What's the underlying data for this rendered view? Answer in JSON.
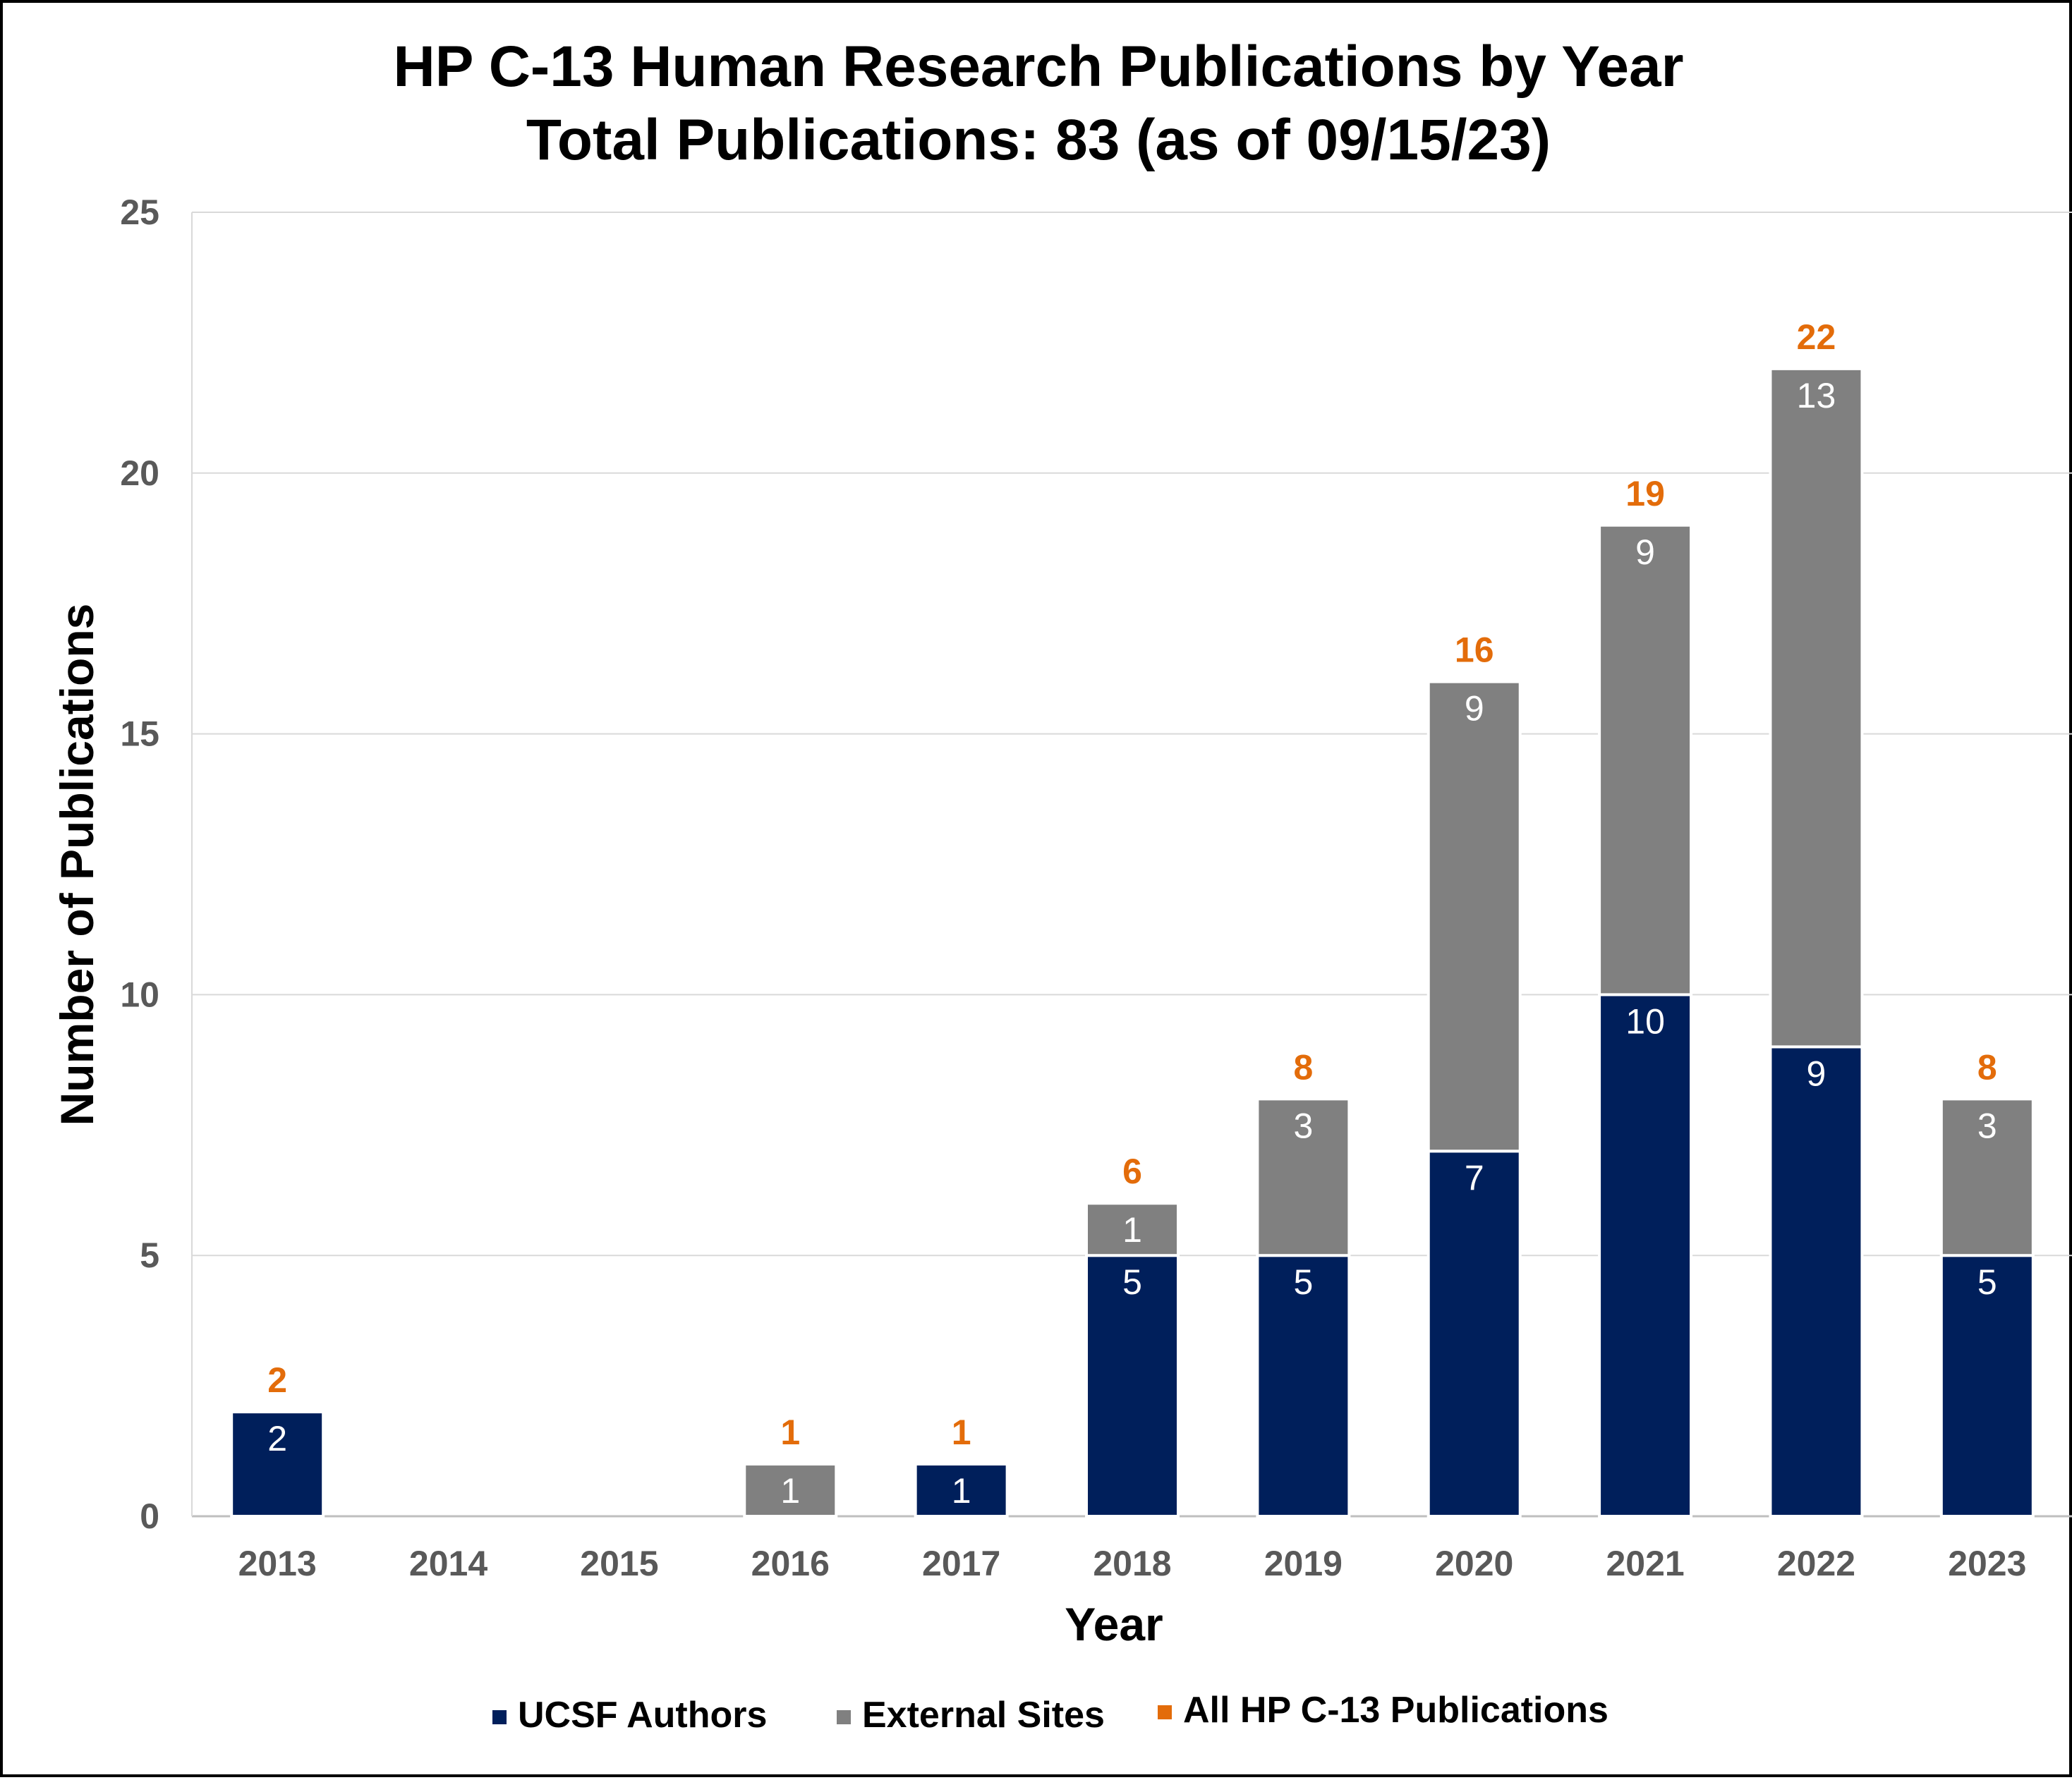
{
  "chart_data": {
    "type": "bar",
    "stacked": true,
    "title": "HP C-13 Human Research Publications by Year",
    "subtitle": "Total Publications: 83 (as of 09/15/23)",
    "xlabel": "Year",
    "ylabel": "Number of Publications",
    "ylim": [
      0,
      25
    ],
    "yticks": [
      0,
      5,
      10,
      15,
      20,
      25
    ],
    "grid": true,
    "legend_position": "bottom",
    "categories": [
      "2013",
      "2014",
      "2015",
      "2016",
      "2017",
      "2018",
      "2019",
      "2020",
      "2021",
      "2022",
      "2023"
    ],
    "series": [
      {
        "name": "UCSF Authors",
        "color": "#001F5B",
        "values": [
          2,
          0,
          0,
          0,
          1,
          5,
          5,
          7,
          10,
          9,
          5
        ]
      },
      {
        "name": "External Sites",
        "color": "#808080",
        "values": [
          0,
          0,
          0,
          1,
          0,
          1,
          3,
          9,
          9,
          13,
          3
        ]
      }
    ],
    "totals": {
      "name": "All HP C-13 Publications",
      "color": "#E36C0A",
      "values": [
        2,
        null,
        null,
        1,
        1,
        6,
        8,
        16,
        19,
        22,
        8
      ]
    }
  }
}
